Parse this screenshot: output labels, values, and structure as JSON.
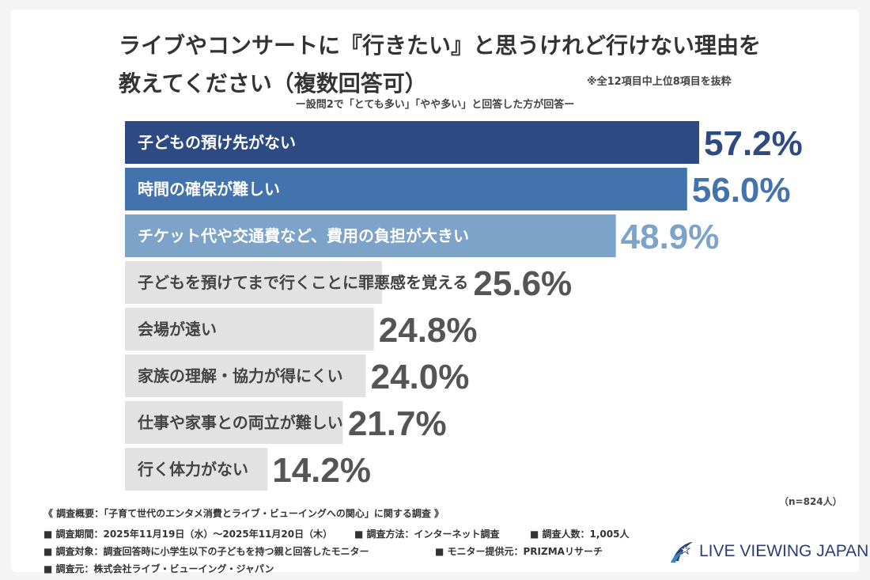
{
  "title": {
    "line1": "ライブやコンサートに『行きたい』と思うけれど行けない理由を",
    "line2": "教えてください（複数回答可）"
  },
  "note": "※全12項目中上位8項目を抜粋",
  "subtitle": "ー設問2で「とても多い」「やや多い」と回答した方が回答ー",
  "n_label": "（n=824人）",
  "chart_data": {
    "type": "bar",
    "orientation": "horizontal",
    "categories": [
      "子どもの預け先がない",
      "時間の確保が難しい",
      "チケット代や交通費など、費用の負担が大きい",
      "子どもを預けてまで行くことに罪悪感を覚える",
      "会場が遠い",
      "家族の理解・協力が得にくい",
      "仕事や家事との両立が難しい",
      "行く体力がない"
    ],
    "values": [
      57.2,
      56.0,
      48.9,
      25.6,
      24.8,
      24.0,
      21.7,
      14.2
    ],
    "value_labels": [
      "57.2%",
      "56.0%",
      "48.9%",
      "25.6%",
      "24.8%",
      "24.0%",
      "21.7%",
      "14.2%"
    ],
    "colors": [
      "#2d4a82",
      "#4373ad",
      "#7ea3c8",
      "#e2e2e2",
      "#e2e2e2",
      "#e2e2e2",
      "#e2e2e2",
      "#e2e2e2"
    ],
    "label_colors": [
      "#ffffff",
      "#ffffff",
      "#ffffff",
      "#444444",
      "#444444",
      "#444444",
      "#444444",
      "#444444"
    ],
    "value_colors": [
      "#2d4a82",
      "#4373ad",
      "#7ea3c8",
      "#555555",
      "#555555",
      "#555555",
      "#555555",
      "#555555"
    ],
    "unit": "%",
    "xlim": [
      0,
      57.2
    ]
  },
  "footer": {
    "survey": "《 調査概要：「子育て世代のエンタメ消費とライブ・ビューイングへの関心」に関する調査 》",
    "period": "■ 調査期間：2025年11月19日（水）～2025年11月20日（木）",
    "method": "■ 調査方法：インターネット調査",
    "people": "■ 調査人数：1,005人",
    "target": "■ 調査対象：調査回答時に小学生以下の子どもを持つ親と回答したモニター",
    "provider": "■ モニター提供元：PRIZMAリサーチ",
    "organizer": "■ 調査元：株式会社ライブ・ビューイング・ジャパン"
  },
  "logo": {
    "text": "LIVE VIEWING JAPAN",
    "icon": "live-viewing-japan-logo-icon",
    "color": "#2a3f73"
  }
}
